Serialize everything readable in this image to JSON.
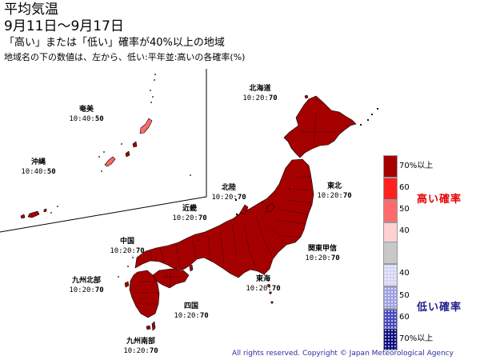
{
  "title": {
    "main": "平均気温",
    "dates": "9月11日～9月17日",
    "subtitle": "「高い」または「低い」確率が40%以上の地域",
    "note": "地域名の下の数値は、左から、低い:平年並:高いの各確率(%)"
  },
  "regions": [
    {
      "id": "hokkaido",
      "name": "北海道",
      "low": "10",
      "normal": "20",
      "high": "70"
    },
    {
      "id": "tohoku",
      "name": "東北",
      "low": "10",
      "normal": "20",
      "high": "70"
    },
    {
      "id": "hokuriku",
      "name": "北陸",
      "low": "10",
      "normal": "20",
      "high": "70"
    },
    {
      "id": "kanto-koshin",
      "name": "関東甲信",
      "low": "10",
      "normal": "20",
      "high": "70"
    },
    {
      "id": "tokai",
      "name": "東海",
      "low": "10",
      "normal": "20",
      "high": "70"
    },
    {
      "id": "kinki",
      "name": "近畿",
      "low": "10",
      "normal": "20",
      "high": "70"
    },
    {
      "id": "chugoku",
      "name": "中国",
      "low": "10",
      "normal": "20",
      "high": "70"
    },
    {
      "id": "shikoku",
      "name": "四国",
      "low": "10",
      "normal": "20",
      "high": "70"
    },
    {
      "id": "kyushu-north",
      "name": "九州北部",
      "low": "10",
      "normal": "20",
      "high": "70"
    },
    {
      "id": "kyushu-south",
      "name": "九州南部",
      "low": "10",
      "normal": "20",
      "high": "70"
    },
    {
      "id": "amami",
      "name": "奄美",
      "low": "10",
      "normal": "40",
      "high": "50"
    },
    {
      "id": "okinawa",
      "name": "沖縄",
      "low": "10",
      "normal": "40",
      "high": "50"
    }
  ],
  "legend": {
    "high_label": "高い確率",
    "low_label": "低い確率",
    "high_labels": [
      "70%以上",
      "60",
      "50",
      "40"
    ],
    "low_labels": [
      "40",
      "50",
      "60",
      "70%以上"
    ],
    "colors": {
      "high70": "#a50000",
      "high60": "#ff2020",
      "high50": "#ff6b6b",
      "high40": "#ffd0d0",
      "normal": "#c8c8c8",
      "low40": "#d4d4f4",
      "low50": "#a0a0e4",
      "low60": "#4848c0",
      "low70": "#101080"
    }
  },
  "copyright": "All rights reserved. Copyright © Japan Meteorological Agency"
}
